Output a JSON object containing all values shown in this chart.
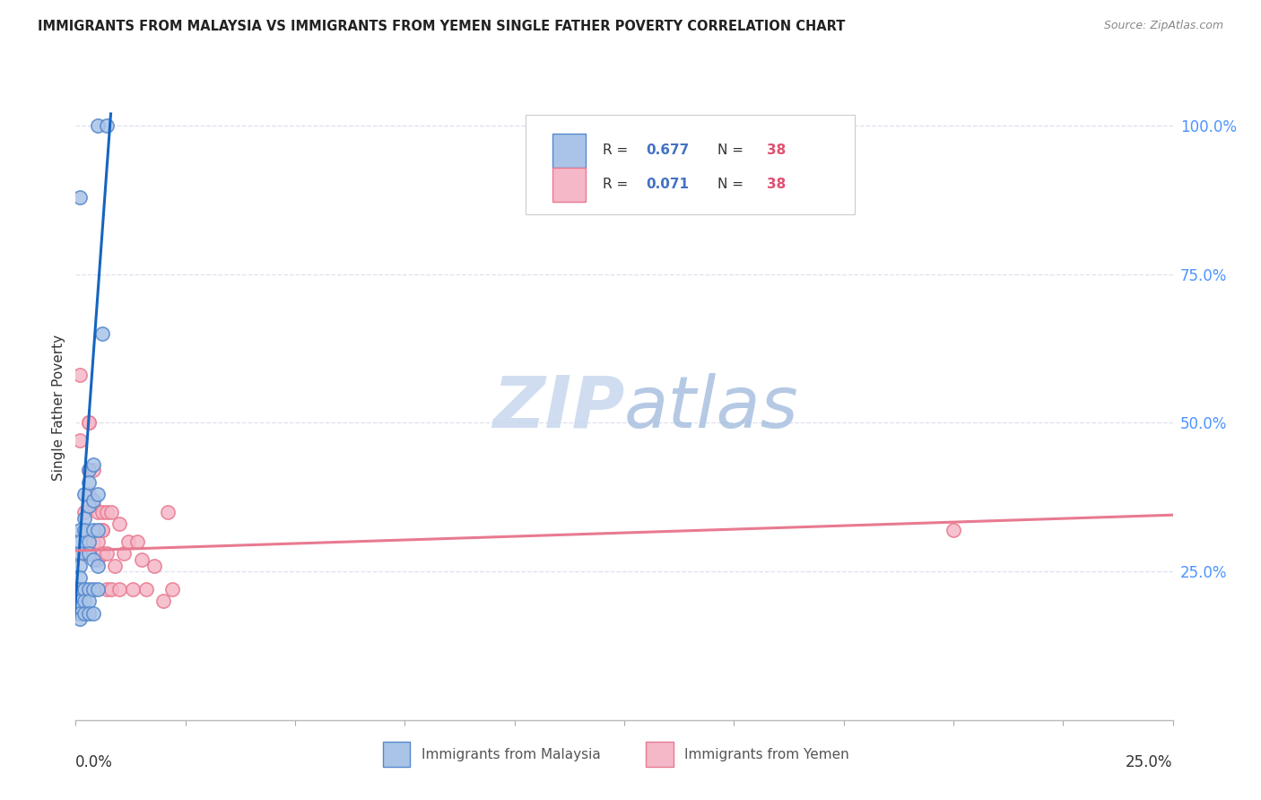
{
  "title": "IMMIGRANTS FROM MALAYSIA VS IMMIGRANTS FROM YEMEN SINGLE FATHER POVERTY CORRELATION CHART",
  "source": "Source: ZipAtlas.com",
  "ylabel": "Single Father Poverty",
  "right_ytick_labels": [
    "100.0%",
    "75.0%",
    "50.0%",
    "25.0%"
  ],
  "right_ytick_values": [
    1.0,
    0.75,
    0.5,
    0.25
  ],
  "right_ytick_color": "#4d94ff",
  "legend_R1": "0.677",
  "legend_R2": "0.071",
  "legend_N": "38",
  "legend_color_blue": "#aac4e8",
  "legend_color_pink": "#f5b8c8",
  "legend_text_color": "#333333",
  "legend_val_color": "#4472c4",
  "legend_N_color": "#e05070",
  "trendline1_color": "#1565c0",
  "trendline2_color": "#e87a90",
  "watermark_text": "ZIPatlas",
  "watermark_color": "#ccdff5",
  "scatter_malaysia_fill": "#aac4e8",
  "scatter_malaysia_edge": "#5588cc",
  "scatter_yemen_fill": "#f5b8c8",
  "scatter_yemen_edge": "#e87a90",
  "background_color": "#ffffff",
  "grid_color": "#dde0ee",
  "xlim": [
    0.0,
    0.25
  ],
  "ylim": [
    0.0,
    1.05
  ],
  "malaysia_x": [
    0.005,
    0.007,
    0.001,
    0.001,
    0.001,
    0.001,
    0.001,
    0.001,
    0.001,
    0.001,
    0.001,
    0.001,
    0.001,
    0.002,
    0.002,
    0.002,
    0.002,
    0.002,
    0.002,
    0.003,
    0.003,
    0.003,
    0.003,
    0.003,
    0.003,
    0.003,
    0.003,
    0.004,
    0.004,
    0.004,
    0.004,
    0.004,
    0.004,
    0.005,
    0.005,
    0.005,
    0.005,
    0.006
  ],
  "malaysia_y": [
    1.0,
    1.0,
    0.88,
    0.32,
    0.3,
    0.28,
    0.26,
    0.24,
    0.22,
    0.2,
    0.19,
    0.18,
    0.17,
    0.38,
    0.34,
    0.32,
    0.22,
    0.2,
    0.18,
    0.42,
    0.4,
    0.36,
    0.3,
    0.28,
    0.22,
    0.2,
    0.18,
    0.43,
    0.37,
    0.32,
    0.27,
    0.22,
    0.18,
    0.38,
    0.32,
    0.26,
    0.22,
    0.65
  ],
  "yemen_x": [
    0.001,
    0.001,
    0.002,
    0.002,
    0.003,
    0.003,
    0.003,
    0.003,
    0.003,
    0.004,
    0.004,
    0.004,
    0.005,
    0.005,
    0.005,
    0.006,
    0.006,
    0.006,
    0.006,
    0.007,
    0.007,
    0.007,
    0.008,
    0.008,
    0.009,
    0.01,
    0.01,
    0.011,
    0.012,
    0.013,
    0.014,
    0.015,
    0.016,
    0.018,
    0.02,
    0.021,
    0.022,
    0.2
  ],
  "yemen_y": [
    0.47,
    0.58,
    0.35,
    0.28,
    0.5,
    0.5,
    0.42,
    0.38,
    0.28,
    0.42,
    0.36,
    0.3,
    0.35,
    0.3,
    0.27,
    0.35,
    0.32,
    0.32,
    0.28,
    0.35,
    0.28,
    0.22,
    0.35,
    0.22,
    0.26,
    0.33,
    0.22,
    0.28,
    0.3,
    0.22,
    0.3,
    0.27,
    0.22,
    0.26,
    0.2,
    0.35,
    0.22,
    0.32
  ],
  "trendline1_x": [
    -0.001,
    0.008
  ],
  "trendline1_y": [
    0.1,
    1.02
  ],
  "trendline2_x": [
    0.0,
    0.25
  ],
  "trendline2_y": [
    0.285,
    0.345
  ]
}
